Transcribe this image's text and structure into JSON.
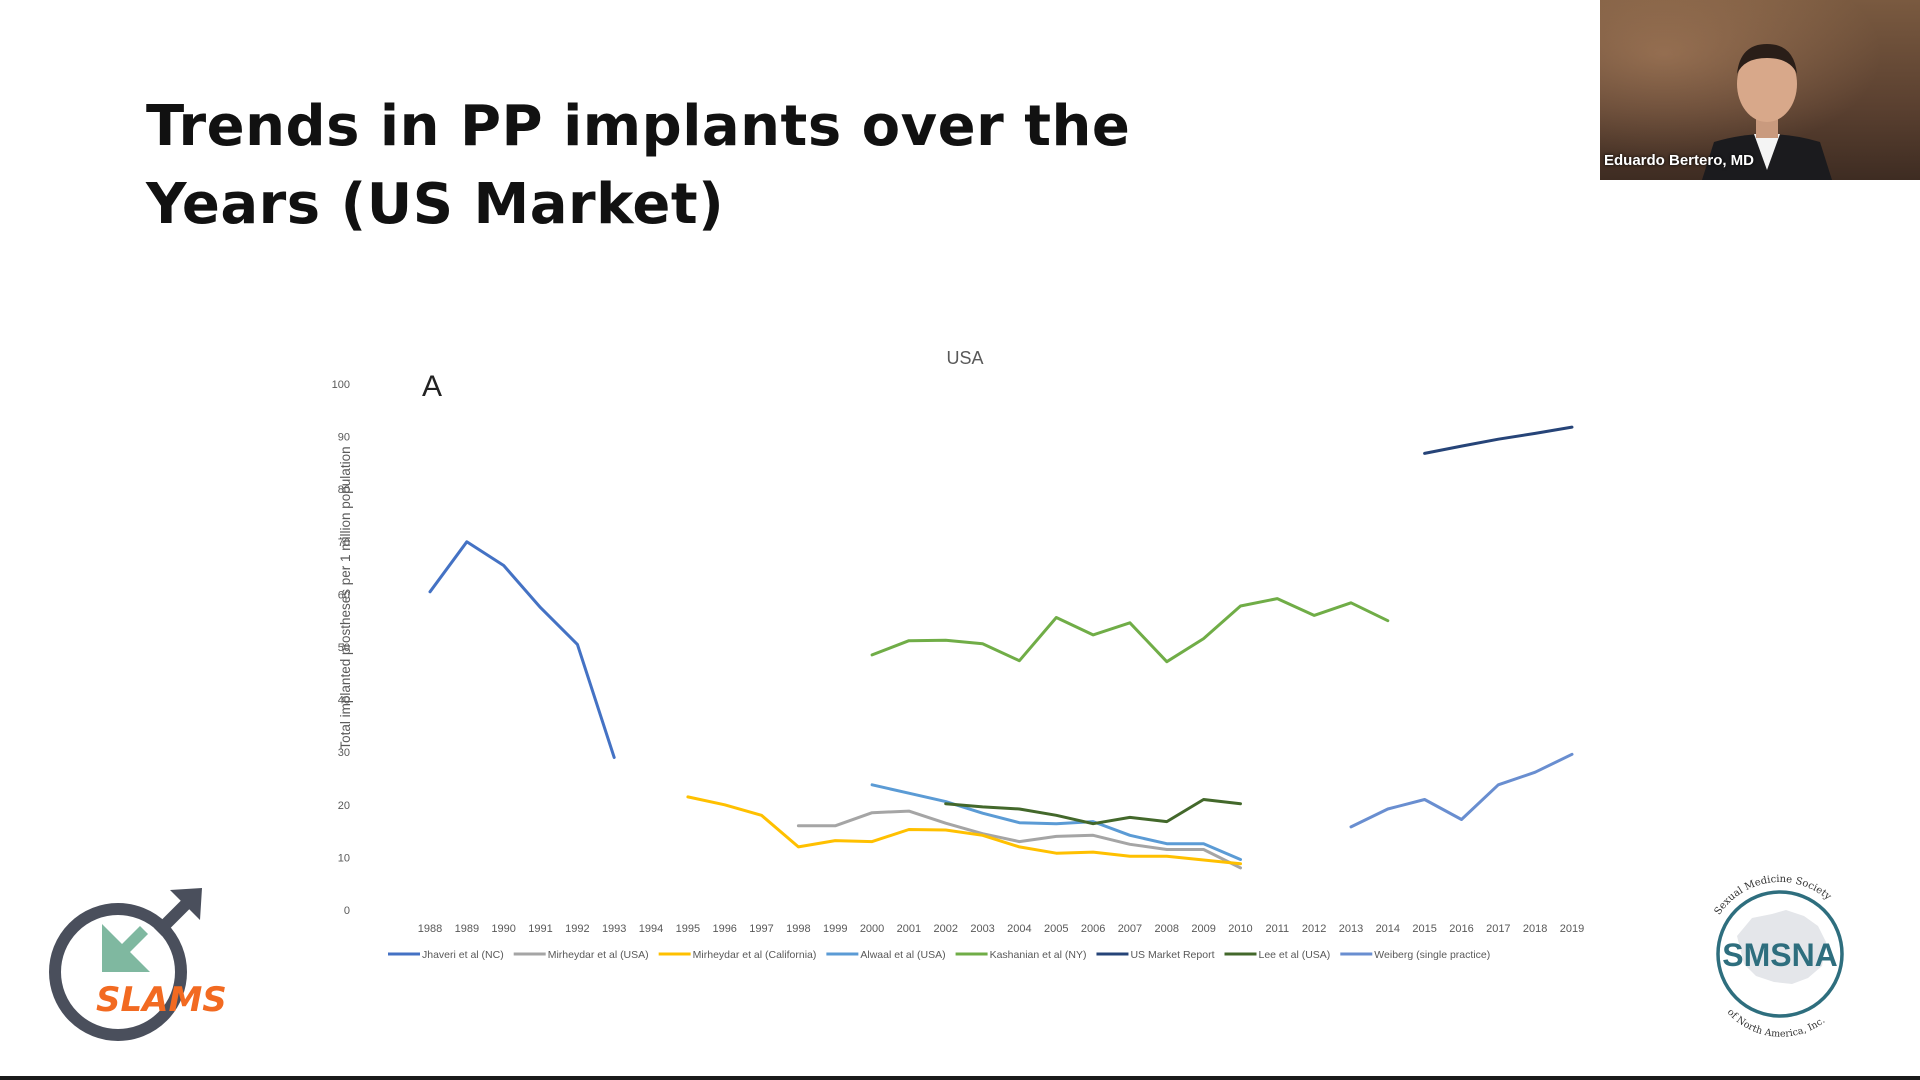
{
  "slide": {
    "title_line1": "Trends in PP implants over the",
    "title_line2": "Years (US Market)"
  },
  "video": {
    "speaker_name": "Eduardo Bertero, MD"
  },
  "logos": {
    "left_text": "SLAMS",
    "right_text": "SMSNA",
    "right_arc_top": "Sexual Medicine Society",
    "right_arc_bottom": "of North America, Inc."
  },
  "chart_data": {
    "type": "line",
    "title": "USA",
    "panel_label": "A",
    "ylabel": "Total implanted prostheses per 1 million population",
    "ylim": [
      0,
      100
    ],
    "yticks": [
      0,
      10,
      20,
      30,
      40,
      50,
      60,
      70,
      80,
      90,
      100
    ],
    "x": [
      1988,
      1989,
      1990,
      1991,
      1992,
      1993,
      1994,
      1995,
      1996,
      1997,
      1998,
      1999,
      2000,
      2001,
      2002,
      2003,
      2004,
      2005,
      2006,
      2007,
      2008,
      2009,
      2010,
      2011,
      2012,
      2013,
      2014,
      2015,
      2016,
      2017,
      2018,
      2019
    ],
    "grid": false,
    "legend_position": "bottom",
    "series": [
      {
        "name": "Jhaveri et al  (NC)",
        "color": "#4472c4",
        "points": [
          [
            1988,
            60.5
          ],
          [
            1989,
            70
          ],
          [
            1990,
            65.5
          ],
          [
            1991,
            57.5
          ],
          [
            1992,
            50.5
          ],
          [
            1993,
            29
          ]
        ]
      },
      {
        "name": "Mirheydar et al (USA)",
        "color": "#a5a5a5",
        "points": [
          [
            1998,
            16
          ],
          [
            1999,
            16
          ],
          [
            2000,
            18.5
          ],
          [
            2001,
            18.8
          ],
          [
            2002,
            16.5
          ],
          [
            2003,
            14.5
          ],
          [
            2004,
            13
          ],
          [
            2005,
            14
          ],
          [
            2006,
            14.2
          ],
          [
            2007,
            12.5
          ],
          [
            2008,
            11.5
          ],
          [
            2009,
            11.5
          ],
          [
            2010,
            8
          ]
        ]
      },
      {
        "name": "Mirheydar et al  (California)",
        "color": "#ffc000",
        "points": [
          [
            1995,
            21.5
          ],
          [
            1996,
            20
          ],
          [
            1997,
            18
          ],
          [
            1998,
            12
          ],
          [
            1999,
            13.2
          ],
          [
            2000,
            13
          ],
          [
            2001,
            15.3
          ],
          [
            2002,
            15.2
          ],
          [
            2003,
            14.2
          ],
          [
            2004,
            12
          ],
          [
            2005,
            10.8
          ],
          [
            2006,
            11
          ],
          [
            2007,
            10.2
          ],
          [
            2008,
            10.2
          ],
          [
            2009,
            9.5
          ],
          [
            2010,
            8.8
          ]
        ]
      },
      {
        "name": "Alwaal et al (USA)",
        "color": "#5b9bd5",
        "points": [
          [
            2000,
            23.8
          ],
          [
            2001,
            22.2
          ],
          [
            2002,
            20.6
          ],
          [
            2003,
            18.4
          ],
          [
            2004,
            16.6
          ],
          [
            2005,
            16.4
          ],
          [
            2006,
            16.8
          ],
          [
            2007,
            14.2
          ],
          [
            2008,
            12.6
          ],
          [
            2009,
            12.6
          ],
          [
            2010,
            9.6
          ]
        ]
      },
      {
        "name": "Kashanian et al  (NY)",
        "color": "#70ad47",
        "points": [
          [
            2000,
            48.5
          ],
          [
            2001,
            51.2
          ],
          [
            2002,
            51.3
          ],
          [
            2003,
            50.6
          ],
          [
            2004,
            47.4
          ],
          [
            2005,
            55.6
          ],
          [
            2006,
            52.3
          ],
          [
            2007,
            54.6
          ],
          [
            2008,
            47.2
          ],
          [
            2009,
            51.6
          ],
          [
            2010,
            57.8
          ],
          [
            2011,
            59.2
          ],
          [
            2012,
            56
          ],
          [
            2013,
            58.4
          ],
          [
            2014,
            55
          ]
        ]
      },
      {
        "name": "US Market Report",
        "color": "#264478",
        "points": [
          [
            2015,
            86.8
          ],
          [
            2016,
            88.2
          ],
          [
            2017,
            89.5
          ],
          [
            2018,
            90.6
          ],
          [
            2019,
            91.8
          ]
        ]
      },
      {
        "name": "Lee et al (USA)",
        "color": "#43682b",
        "points": [
          [
            2002,
            20.2
          ],
          [
            2003,
            19.6
          ],
          [
            2004,
            19.2
          ],
          [
            2005,
            18
          ],
          [
            2006,
            16.4
          ],
          [
            2007,
            17.6
          ],
          [
            2008,
            16.8
          ],
          [
            2009,
            21
          ],
          [
            2010,
            20.2
          ]
        ]
      },
      {
        "name": "Weiberg (single practice)",
        "color": "#698ed0",
        "points": [
          [
            2013,
            15.8
          ],
          [
            2014,
            19.2
          ],
          [
            2015,
            21
          ],
          [
            2016,
            17.2
          ],
          [
            2017,
            23.8
          ],
          [
            2018,
            26.2
          ],
          [
            2019,
            29.6
          ]
        ]
      }
    ]
  }
}
